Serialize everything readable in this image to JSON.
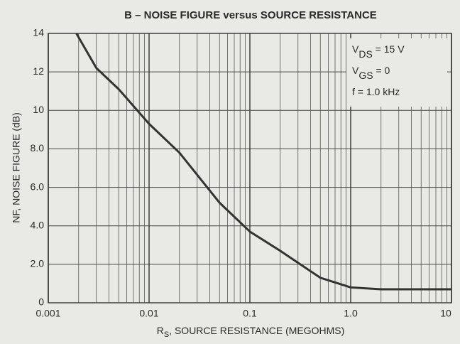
{
  "chart_data": {
    "type": "line",
    "title": "B – NOISE FIGURE versus SOURCE RESISTANCE",
    "y_label": "NF, NOISE FIGURE (dB)",
    "x_label": {
      "main": "R",
      "sub": "S",
      "rest": ", SOURCE RESISTANCE (MEGOHMS)"
    },
    "annotations": [
      {
        "main": "V",
        "sub": "DS",
        "rest": " = 15 V"
      },
      {
        "main": "V",
        "sub": "GS",
        "rest": " = 0"
      },
      {
        "main": "f = 1.0 kHz"
      }
    ],
    "log_x": true,
    "grid": true,
    "xlim": [
      0.001,
      10
    ],
    "xticks": [
      0.001,
      0.01,
      0.1,
      {
        "value": 1,
        "label": "1.0"
      },
      10
    ],
    "ylim": [
      0,
      14
    ],
    "yticks": [
      0,
      {
        "value": 2,
        "label": "2.0"
      },
      {
        "value": 4,
        "label": "4.0"
      },
      {
        "value": 6,
        "label": "6.0"
      },
      {
        "value": 8,
        "label": "8.0"
      },
      10,
      12,
      14
    ],
    "x": [
      0.0019,
      0.003,
      0.005,
      0.01,
      0.02,
      0.05,
      0.1,
      0.2,
      0.5,
      1,
      2,
      5,
      10
    ],
    "series": [
      {
        "name": "NF",
        "color": "#333333",
        "values": [
          14,
          12.2,
          11.1,
          9.3,
          7.8,
          5.2,
          3.7,
          2.7,
          1.3,
          0.8,
          0.7,
          0.7,
          0.7
        ]
      }
    ]
  }
}
